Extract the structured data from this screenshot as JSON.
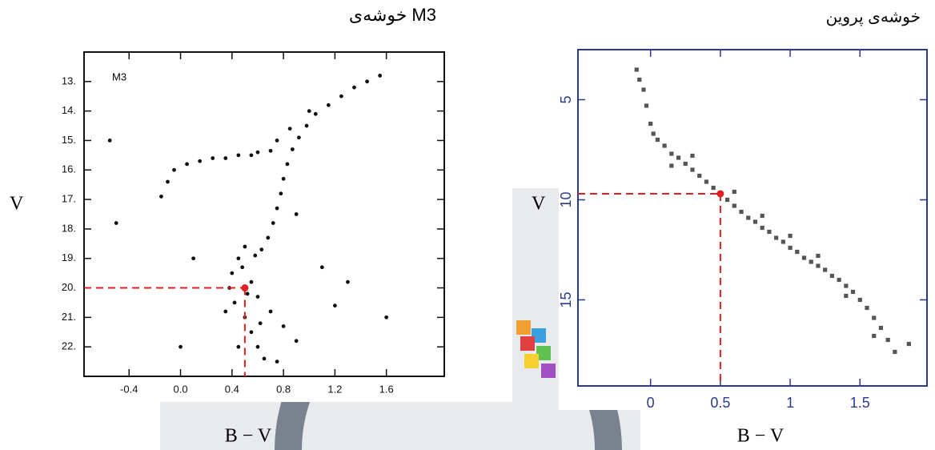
{
  "chart_data": [
    {
      "type": "scatter",
      "title": "خوشه‌ی M3",
      "annotation": "M3",
      "x_label": "B − V",
      "y_label": "V",
      "color": "#111111",
      "xlim": [
        -0.75,
        2.05
      ],
      "ylim": [
        12,
        23
      ],
      "y_inverted": true,
      "xticks": [
        -0.4,
        {
          "value": 0,
          "label": "0.0"
        },
        0.4,
        0.8,
        1.2,
        1.6
      ],
      "yticks": [
        {
          "value": 13,
          "label": "13."
        },
        {
          "value": 14,
          "label": "14."
        },
        {
          "value": 15,
          "label": "15."
        },
        {
          "value": 16,
          "label": "16."
        },
        {
          "value": 17,
          "label": "17."
        },
        {
          "value": 18,
          "label": "18."
        },
        {
          "value": 19,
          "label": "19."
        },
        {
          "value": 20,
          "label": "20."
        },
        {
          "value": 21,
          "label": "21."
        },
        {
          "value": 22,
          "label": "22."
        }
      ],
      "x": [
        1.55,
        1.45,
        1.35,
        1.25,
        1.15,
        1.05,
        0.98,
        0.92,
        0.87,
        0.83,
        0.8,
        0.78,
        0.75,
        0.72,
        0.68,
        0.63,
        0.55,
        0.45,
        0.35,
        0.25,
        0.15,
        0.05,
        -0.05,
        -0.1,
        -0.15,
        0.6,
        0.7,
        1.0,
        0.85,
        0.75,
        0.45,
        0.4,
        0.38,
        0.42,
        0.5,
        0.55,
        0.6,
        0.65,
        0.48,
        0.55,
        0.6,
        0.7,
        0.8,
        0.9,
        0.35,
        0.45,
        0.75,
        0.52,
        0.62,
        0.58,
        0.5,
        1.1,
        1.3,
        0.1,
        1.2,
        0.0,
        1.6,
        -0.5,
        -0.55,
        0.9
      ],
      "values": [
        12.8,
        13.0,
        13.2,
        13.5,
        13.8,
        14.1,
        14.5,
        14.9,
        15.3,
        15.8,
        16.3,
        16.8,
        17.3,
        17.8,
        18.3,
        18.7,
        15.5,
        15.5,
        15.6,
        15.6,
        15.7,
        15.8,
        16.0,
        16.4,
        16.9,
        15.4,
        15.35,
        14.0,
        14.6,
        15.0,
        19.0,
        19.5,
        20.0,
        20.5,
        21.0,
        21.5,
        22.0,
        22.4,
        19.3,
        19.8,
        20.3,
        20.8,
        21.3,
        21.8,
        20.8,
        22.0,
        22.5,
        20.2,
        21.2,
        18.9,
        18.6,
        19.3,
        19.8,
        19.0,
        20.6,
        22.0,
        21.0,
        17.8,
        15.0,
        17.5
      ],
      "highlight": {
        "x": 0.5,
        "y": 20,
        "color": "#e02020"
      }
    },
    {
      "type": "scatter",
      "title": "خوشه‌ی پروین",
      "x_label": "B − V",
      "y_label": "V",
      "color": "#555555",
      "xlim": [
        -0.52,
        1.98
      ],
      "ylim": [
        2.5,
        19.3
      ],
      "y_inverted": true,
      "xticks": [
        0,
        0.5,
        1,
        1.5
      ],
      "yticks": [
        5,
        10,
        15
      ],
      "x": [
        -0.1,
        -0.08,
        -0.05,
        -0.03,
        0.0,
        0.02,
        0.05,
        0.1,
        0.15,
        0.2,
        0.25,
        0.3,
        0.35,
        0.4,
        0.45,
        0.5,
        0.55,
        0.6,
        0.65,
        0.7,
        0.75,
        0.8,
        0.85,
        0.9,
        0.95,
        1.0,
        1.05,
        1.1,
        1.15,
        1.2,
        1.25,
        1.3,
        1.35,
        1.4,
        1.45,
        1.5,
        1.55,
        1.6,
        1.65,
        1.7,
        1.75,
        1.85,
        0.3,
        0.6,
        1.0,
        1.4,
        0.15,
        0.8,
        1.2,
        1.6
      ],
      "values": [
        3.5,
        4.0,
        4.5,
        5.3,
        6.2,
        6.7,
        7.0,
        7.3,
        7.7,
        7.9,
        8.2,
        8.5,
        8.8,
        9.1,
        9.4,
        9.7,
        10.0,
        10.3,
        10.6,
        10.9,
        11.1,
        11.4,
        11.6,
        11.9,
        12.1,
        12.4,
        12.6,
        12.9,
        13.1,
        13.3,
        13.5,
        13.8,
        14.0,
        14.3,
        14.6,
        15.0,
        15.4,
        15.9,
        16.4,
        17.0,
        17.6,
        17.2,
        7.8,
        9.6,
        11.8,
        14.8,
        8.3,
        10.8,
        12.8,
        16.8
      ],
      "highlight": {
        "x": 0.5,
        "y": 9.7,
        "color": "#e02020"
      }
    }
  ]
}
